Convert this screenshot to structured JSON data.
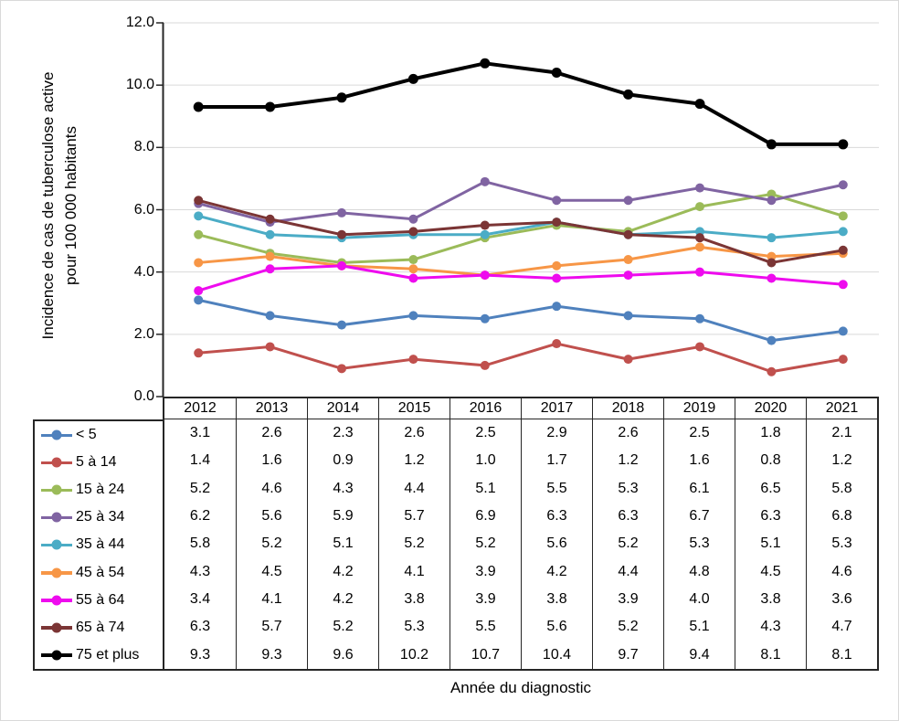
{
  "chart_data": {
    "type": "line",
    "title": "",
    "xlabel": "Année du diagnostic",
    "ylabel_line1": "Incidence de cas de tuberculose active",
    "ylabel_line2": "pour 100 000 habitants",
    "ylim": [
      0,
      12
    ],
    "ytick_step": 2,
    "yticks": [
      "0.0",
      "2.0",
      "4.0",
      "6.0",
      "8.0",
      "10.0",
      "12.0"
    ],
    "grid": true,
    "grid_color": "#d9d9d9",
    "axis_color": "#262626",
    "table_border_color": "#262626",
    "text_color": "#000000",
    "legend_position": "table-left",
    "categories": [
      "2012",
      "2013",
      "2014",
      "2015",
      "2016",
      "2017",
      "2018",
      "2019",
      "2020",
      "2021"
    ],
    "series": [
      {
        "name": "< 5",
        "color": "#4F81BD",
        "values": [
          3.1,
          2.6,
          2.3,
          2.6,
          2.5,
          2.9,
          2.6,
          2.5,
          1.8,
          2.1
        ]
      },
      {
        "name": "5 à 14",
        "color": "#C0504D",
        "values": [
          1.4,
          1.6,
          0.9,
          1.2,
          1.0,
          1.7,
          1.2,
          1.6,
          0.8,
          1.2
        ]
      },
      {
        "name": "15 à 24",
        "color": "#9BBB59",
        "values": [
          5.2,
          4.6,
          4.3,
          4.4,
          5.1,
          5.5,
          5.3,
          6.1,
          6.5,
          5.8
        ]
      },
      {
        "name": "25 à 34",
        "color": "#8064A2",
        "values": [
          6.2,
          5.6,
          5.9,
          5.7,
          6.9,
          6.3,
          6.3,
          6.7,
          6.3,
          6.8
        ]
      },
      {
        "name": "35 à 44",
        "color": "#4BACC6",
        "values": [
          5.8,
          5.2,
          5.1,
          5.2,
          5.2,
          5.6,
          5.2,
          5.3,
          5.1,
          5.3
        ]
      },
      {
        "name": "45 à 54",
        "color": "#F79646",
        "values": [
          4.3,
          4.5,
          4.2,
          4.1,
          3.9,
          4.2,
          4.4,
          4.8,
          4.5,
          4.6
        ]
      },
      {
        "name": "55 à 64",
        "color": "#EE0BEE",
        "values": [
          3.4,
          4.1,
          4.2,
          3.8,
          3.9,
          3.8,
          3.9,
          4.0,
          3.8,
          3.6
        ]
      },
      {
        "name": "65 à 74",
        "color": "#7B3535",
        "values": [
          6.3,
          5.7,
          5.2,
          5.3,
          5.5,
          5.6,
          5.2,
          5.1,
          4.3,
          4.7
        ]
      },
      {
        "name": "75 et plus",
        "color": "#000000",
        "values": [
          9.3,
          9.3,
          9.6,
          10.2,
          10.7,
          10.4,
          9.7,
          9.4,
          8.1,
          8.1
        ]
      }
    ]
  }
}
